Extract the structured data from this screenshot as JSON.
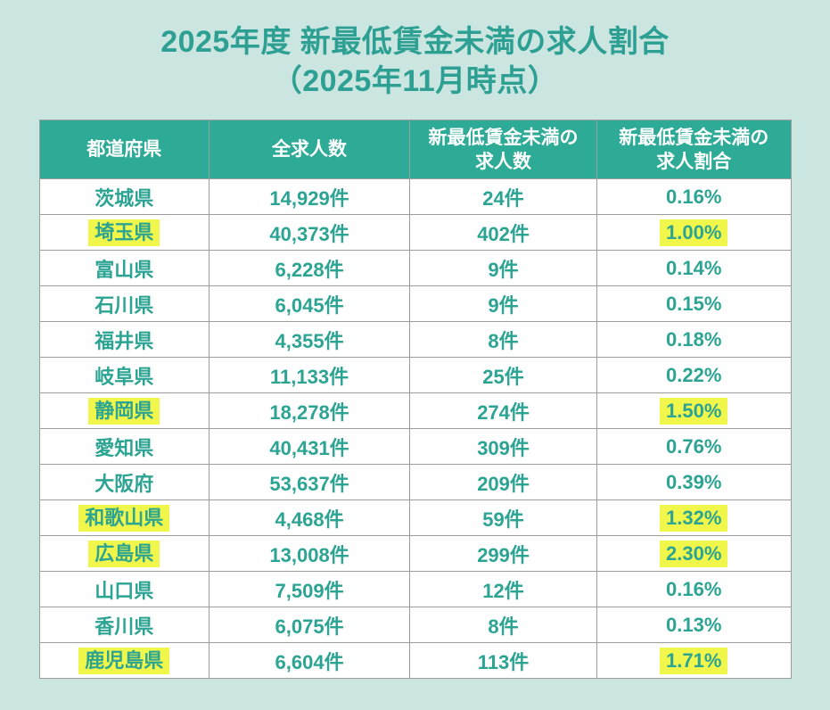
{
  "title": {
    "line1": "2025年度 新最低賃金未満の求人割合",
    "line2": "（2025年11月時点）"
  },
  "colors": {
    "background": "#cbe6e0",
    "header_bg": "#2dab97",
    "header_text": "#ffffff",
    "body_text": "#2ca493",
    "highlight": "#f1f64a",
    "border": "#9c9c9c"
  },
  "table": {
    "headers": [
      [
        "都道府県"
      ],
      [
        "全求人数"
      ],
      [
        "新最低賃金未満の",
        "求人数"
      ],
      [
        "新最低賃金未満の",
        "求人割合"
      ]
    ],
    "rows": [
      {
        "prefecture": "茨城県",
        "total": "14,929件",
        "below": "24件",
        "ratio": "0.16%",
        "highlighted": false
      },
      {
        "prefecture": "埼玉県",
        "total": "40,373件",
        "below": "402件",
        "ratio": "1.00%",
        "highlighted": true
      },
      {
        "prefecture": "富山県",
        "total": "6,228件",
        "below": "9件",
        "ratio": "0.14%",
        "highlighted": false
      },
      {
        "prefecture": "石川県",
        "total": "6,045件",
        "below": "9件",
        "ratio": "0.15%",
        "highlighted": false
      },
      {
        "prefecture": "福井県",
        "total": "4,355件",
        "below": "8件",
        "ratio": "0.18%",
        "highlighted": false
      },
      {
        "prefecture": "岐阜県",
        "total": "11,133件",
        "below": "25件",
        "ratio": "0.22%",
        "highlighted": false
      },
      {
        "prefecture": "静岡県",
        "total": "18,278件",
        "below": "274件",
        "ratio": "1.50%",
        "highlighted": true
      },
      {
        "prefecture": "愛知県",
        "total": "40,431件",
        "below": "309件",
        "ratio": "0.76%",
        "highlighted": false
      },
      {
        "prefecture": "大阪府",
        "total": "53,637件",
        "below": "209件",
        "ratio": "0.39%",
        "highlighted": false
      },
      {
        "prefecture": "和歌山県",
        "total": "4,468件",
        "below": "59件",
        "ratio": "1.32%",
        "highlighted": true
      },
      {
        "prefecture": "広島県",
        "total": "13,008件",
        "below": "299件",
        "ratio": "2.30%",
        "highlighted": true
      },
      {
        "prefecture": "山口県",
        "total": "7,509件",
        "below": "12件",
        "ratio": "0.16%",
        "highlighted": false
      },
      {
        "prefecture": "香川県",
        "total": "6,075件",
        "below": "8件",
        "ratio": "0.13%",
        "highlighted": false
      },
      {
        "prefecture": "鹿児島県",
        "total": "6,604件",
        "below": "113件",
        "ratio": "1.71%",
        "highlighted": true
      }
    ]
  },
  "chart_data": {
    "type": "table",
    "title": "2025年度 新最低賃金未満の求人割合（2025年11月時点）",
    "columns": [
      "都道府県",
      "全求人数",
      "新最低賃金未満の求人数",
      "新最低賃金未満の求人割合(%)"
    ],
    "rows": [
      [
        "茨城県",
        14929,
        24,
        0.16
      ],
      [
        "埼玉県",
        40373,
        402,
        1.0
      ],
      [
        "富山県",
        6228,
        9,
        0.14
      ],
      [
        "石川県",
        6045,
        9,
        0.15
      ],
      [
        "福井県",
        4355,
        8,
        0.18
      ],
      [
        "岐阜県",
        11133,
        25,
        0.22
      ],
      [
        "静岡県",
        18278,
        274,
        1.5
      ],
      [
        "愛知県",
        40431,
        309,
        0.76
      ],
      [
        "大阪府",
        53637,
        209,
        0.39
      ],
      [
        "和歌山県",
        4468,
        59,
        1.32
      ],
      [
        "広島県",
        13008,
        299,
        2.3
      ],
      [
        "山口県",
        7509,
        12,
        0.16
      ],
      [
        "香川県",
        6075,
        8,
        0.13
      ],
      [
        "鹿児島県",
        6604,
        113,
        1.71
      ]
    ],
    "highlighted_rows": [
      "埼玉県",
      "静岡県",
      "和歌山県",
      "広島県",
      "鹿児島県"
    ],
    "unit_suffix": "件"
  }
}
